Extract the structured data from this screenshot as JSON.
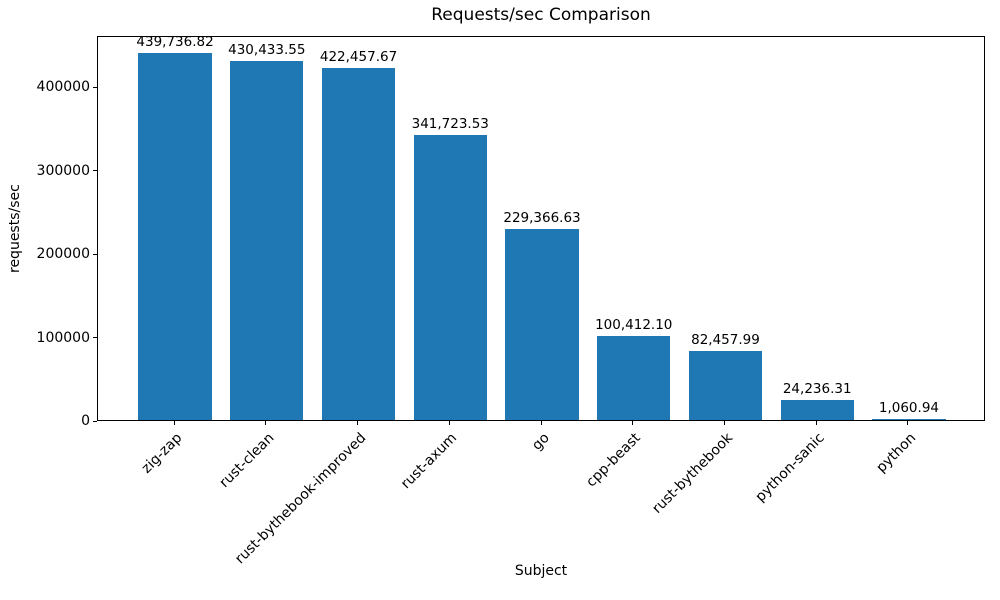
{
  "chart_data": {
    "type": "bar",
    "title": "Requests/sec Comparison",
    "xlabel": "Subject",
    "ylabel": "requests/sec",
    "categories": [
      "zig-zap",
      "rust-clean",
      "rust-bythebook-improved",
      "rust-axum",
      "go",
      "cpp-beast",
      "rust-bythebook",
      "python-sanic",
      "python"
    ],
    "values": [
      439736.82,
      430433.55,
      422457.67,
      341723.53,
      229366.63,
      100412.1,
      82457.99,
      24236.31,
      1060.94
    ],
    "bar_value_labels": [
      "439,736.82",
      "430,433.55",
      "422,457.67",
      "341,723.53",
      "229,366.63",
      "100,412.10",
      "82,457.99",
      "24,236.31",
      "1,060.94"
    ],
    "ytick_values": [
      0,
      100000,
      200000,
      300000,
      400000
    ],
    "ytick_labels": [
      "0",
      "100000",
      "200000",
      "300000",
      "400000"
    ],
    "ylim": [
      0,
      461724
    ],
    "bar_color": "#1f77b4",
    "text_color": "#000000",
    "spine_color": "#000000",
    "grid": false,
    "legend_position": "none",
    "x_tick_rotation_deg": 45
  }
}
